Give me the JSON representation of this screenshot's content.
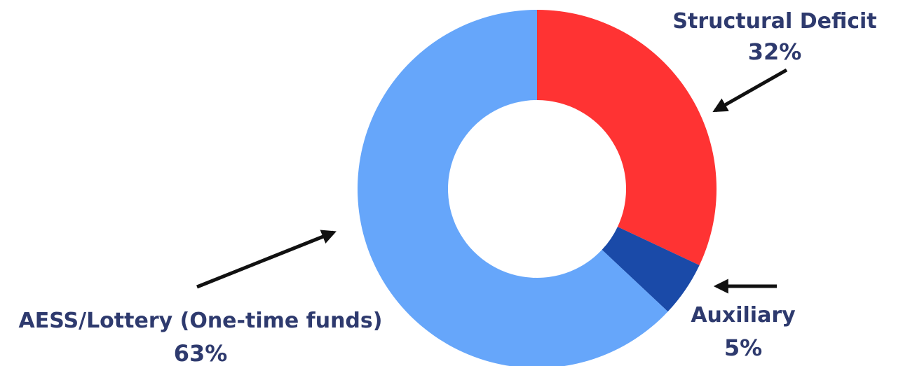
{
  "chart_data": {
    "type": "pie",
    "title": "",
    "donut": true,
    "slices": [
      {
        "label": "Structural Deficit",
        "value": 32,
        "value_label": "32%",
        "color": "#ff3333"
      },
      {
        "label": "Auxiliary",
        "value": 5,
        "value_label": "5%",
        "color": "#1a4aa8"
      },
      {
        "label": "AESS/Lottery (One-time funds)",
        "value": 63,
        "value_label": "63%",
        "color": "#66a6fa"
      }
    ]
  }
}
